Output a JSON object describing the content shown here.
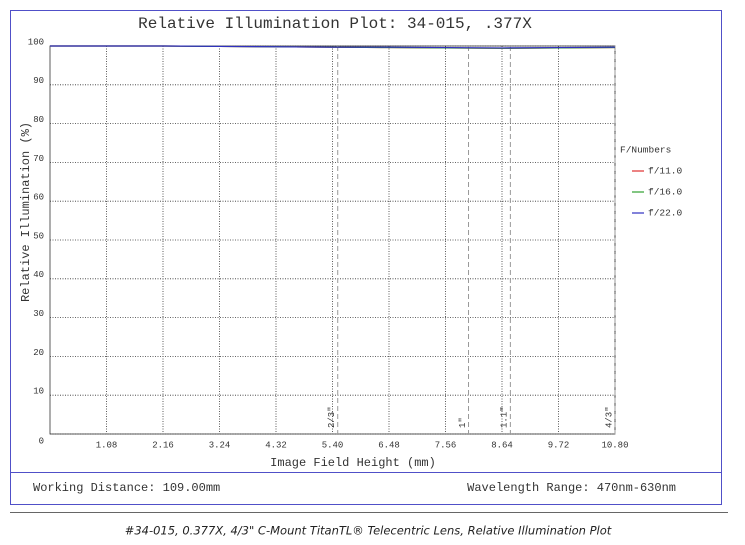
{
  "chart_data": {
    "type": "line",
    "title": "Relative Illumination Plot: 34-015, .377X",
    "xlabel": "Image Field Height (mm)",
    "ylabel": "Relative Illumination (%)",
    "x": [
      0,
      1.08,
      2.16,
      3.24,
      4.32,
      5.4,
      6.48,
      7.56,
      8.64,
      9.72,
      10.8
    ],
    "series": [
      {
        "name": "f/11.0",
        "color": "#e03030",
        "values": [
          100,
          100,
          100,
          99.9,
          99.8,
          99.7,
          99.6,
          99.5,
          99.4,
          99.5,
          99.6
        ]
      },
      {
        "name": "f/16.0",
        "color": "#30a030",
        "values": [
          100,
          100,
          100,
          99.9,
          99.8,
          99.7,
          99.6,
          99.5,
          99.4,
          99.5,
          99.6
        ]
      },
      {
        "name": "f/22.0",
        "color": "#3030c0",
        "values": [
          100,
          100,
          100,
          99.9,
          99.8,
          99.7,
          99.7,
          99.6,
          99.5,
          99.6,
          99.7
        ]
      }
    ],
    "legend_title": "F/Numbers",
    "legend_position": "right",
    "xlim": [
      0,
      10.8
    ],
    "ylim": [
      0,
      100
    ],
    "xticks": [
      1.08,
      2.16,
      3.24,
      4.32,
      {
        "value": 5.4,
        "label": "5.40"
      },
      6.48,
      7.56,
      8.64,
      9.72,
      {
        "value": 10.8,
        "label": "10.80"
      }
    ],
    "yticks": [
      0,
      10,
      20,
      30,
      40,
      50,
      60,
      70,
      80,
      90,
      100
    ],
    "grid": true,
    "sensor_markers": [
      {
        "label": "2/3\"",
        "x": 5.5
      },
      {
        "label": "1\"",
        "x": 8.0
      },
      {
        "label": "1.1\"",
        "x": 8.8
      },
      {
        "label": "4/3\"",
        "x": 10.8
      }
    ]
  },
  "footer": {
    "working_distance": "Working Distance: 109.00mm",
    "wavelength_range": "Wavelength Range: 470nm-630nm"
  },
  "caption": "#34-015, 0.377X, 4/3\" C-Mount TitanTL® Telecentric Lens, Relative Illumination Plot"
}
